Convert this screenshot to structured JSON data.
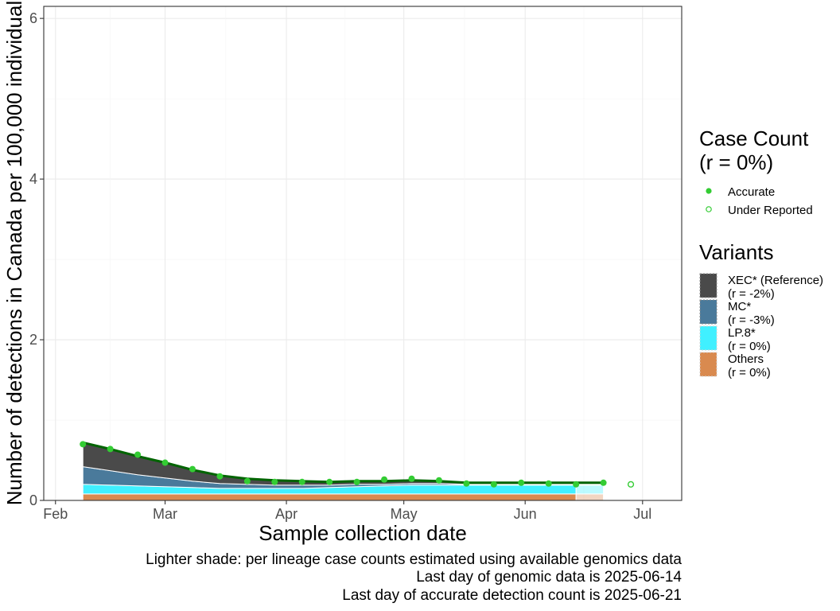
{
  "chart_data": {
    "type": "area",
    "xlabel": "Sample collection date",
    "ylabel": "Number of detections in Canada per 100,000 individual",
    "x_ticks": [
      "Feb",
      "Mar",
      "Apr",
      "May",
      "Jun",
      "Jul"
    ],
    "y_ticks": [
      "0",
      "2",
      "4",
      "6"
    ],
    "ylim": [
      0,
      6.15
    ],
    "xlim": [
      "2025-01-29",
      "2025-07-11"
    ],
    "grid": true,
    "legend_position": "right",
    "case_count_legend": {
      "title_line1": "Case Count",
      "title_line2": "(r = 0%)",
      "items": [
        {
          "label": "Accurate",
          "color": "#33cc33",
          "filled": true
        },
        {
          "label": "Under Reported",
          "color": "#33cc33",
          "filled": false
        }
      ]
    },
    "variants_legend": {
      "title": "Variants",
      "items": [
        {
          "name": "XEC* (Reference)",
          "rate": "(r = -2%)",
          "color": "#4a4a4a"
        },
        {
          "name": "MC*",
          "rate": "(r = -3%)",
          "color": "#4a7a9b"
        },
        {
          "name": "LP.8*",
          "rate": "(r = 0%)",
          "color": "#40f0ff"
        },
        {
          "name": "Others",
          "rate": "(r = 0%)",
          "color": "#d98a4f"
        }
      ]
    },
    "x": [
      "2025-02-08",
      "2025-02-15",
      "2025-02-22",
      "2025-03-01",
      "2025-03-08",
      "2025-03-15",
      "2025-03-22",
      "2025-03-29",
      "2025-04-05",
      "2025-04-12",
      "2025-04-19",
      "2025-04-26",
      "2025-05-03",
      "2025-05-10",
      "2025-05-17",
      "2025-05-24",
      "2025-05-31",
      "2025-06-07",
      "2025-06-14",
      "2025-06-21"
    ],
    "genomic_cutoff": "2025-06-14",
    "series": [
      {
        "name": "Others",
        "color": "#d98a4f",
        "values": [
          0.08,
          0.08,
          0.08,
          0.08,
          0.08,
          0.08,
          0.08,
          0.08,
          0.08,
          0.08,
          0.08,
          0.08,
          0.08,
          0.08,
          0.08,
          0.08,
          0.08,
          0.08,
          0.08,
          0.08
        ]
      },
      {
        "name": "LP.8*",
        "color": "#40f0ff",
        "values": [
          0.12,
          0.11,
          0.1,
          0.09,
          0.08,
          0.07,
          0.07,
          0.07,
          0.07,
          0.08,
          0.09,
          0.1,
          0.11,
          0.11,
          0.11,
          0.11,
          0.11,
          0.11,
          0.11,
          0.11
        ]
      },
      {
        "name": "MC*",
        "color": "#4a7a9b",
        "values": [
          0.22,
          0.18,
          0.14,
          0.11,
          0.08,
          0.06,
          0.05,
          0.04,
          0.04,
          0.03,
          0.03,
          0.02,
          0.02,
          0.02,
          0.01,
          0.01,
          0.01,
          0.01,
          0.01,
          0.01
        ]
      },
      {
        "name": "XEC* (Reference)",
        "color": "#4a4a4a",
        "values": [
          0.3,
          0.27,
          0.23,
          0.19,
          0.14,
          0.1,
          0.07,
          0.06,
          0.05,
          0.04,
          0.04,
          0.04,
          0.04,
          0.03,
          0.02,
          0.02,
          0.02,
          0.02,
          0.02,
          0.02
        ]
      }
    ],
    "total_line": [
      0.72,
      0.64,
      0.55,
      0.47,
      0.38,
      0.31,
      0.27,
      0.25,
      0.24,
      0.23,
      0.24,
      0.24,
      0.25,
      0.24,
      0.22,
      0.22,
      0.22,
      0.22,
      0.22,
      0.22
    ],
    "detections": {
      "accurate": [
        {
          "x": "2025-02-08",
          "y": 0.7
        },
        {
          "x": "2025-02-15",
          "y": 0.64
        },
        {
          "x": "2025-02-22",
          "y": 0.57
        },
        {
          "x": "2025-03-01",
          "y": 0.47
        },
        {
          "x": "2025-03-08",
          "y": 0.39
        },
        {
          "x": "2025-03-15",
          "y": 0.3
        },
        {
          "x": "2025-03-22",
          "y": 0.24
        },
        {
          "x": "2025-03-29",
          "y": 0.23
        },
        {
          "x": "2025-04-05",
          "y": 0.23
        },
        {
          "x": "2025-04-12",
          "y": 0.23
        },
        {
          "x": "2025-04-19",
          "y": 0.23
        },
        {
          "x": "2025-04-26",
          "y": 0.26
        },
        {
          "x": "2025-05-03",
          "y": 0.27
        },
        {
          "x": "2025-05-10",
          "y": 0.25
        },
        {
          "x": "2025-05-17",
          "y": 0.21
        },
        {
          "x": "2025-05-24",
          "y": 0.2
        },
        {
          "x": "2025-05-31",
          "y": 0.22
        },
        {
          "x": "2025-06-07",
          "y": 0.21
        },
        {
          "x": "2025-06-14",
          "y": 0.2
        },
        {
          "x": "2025-06-21",
          "y": 0.22
        }
      ],
      "under_reported": [
        {
          "x": "2025-06-28",
          "y": 0.2
        }
      ]
    },
    "captions": [
      "Lighter shade: per lineage case counts estimated using available genomics data",
      "Last day of genomic data is 2025-06-14",
      "Last day of accurate detection count is 2025-06-21"
    ]
  }
}
